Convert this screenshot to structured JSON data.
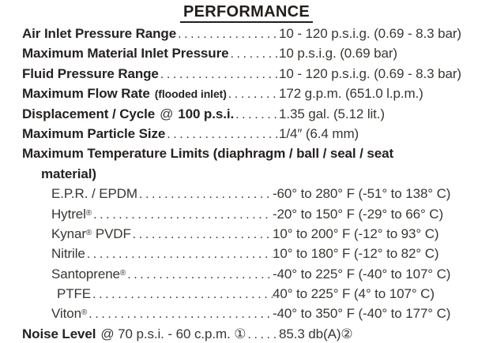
{
  "colors": {
    "ink_bold": "#262220",
    "ink_regular": "#3a3631",
    "background": "#ffffff"
  },
  "title": "PERFORMANCE",
  "specs": [
    {
      "label": "Air Inlet Pressure Range",
      "value": "10 - 120 p.s.i.g. (0.69 - 8.3 bar)"
    },
    {
      "label": "Maximum Material Inlet Pressure",
      "value": "10 p.s.i.g. (0.69 bar)"
    },
    {
      "label": "Fluid Pressure Range",
      "value": "10 - 120 p.s.i.g. (0.69 - 8.3 bar)"
    },
    {
      "label": "Maximum Flow Rate",
      "note": "(flooded inlet)",
      "value": "172 g.p.m. (651.0 l.p.m.)"
    },
    {
      "label": "Displacement / Cycle",
      "connector": "@",
      "label_bold2": "100 p.s.i.",
      "value": "1.35 gal. (5.12 lit.)"
    },
    {
      "label": "Maximum Particle Size",
      "value": "1/4″ (6.4 mm)"
    }
  ],
  "temperature_limits": {
    "heading_line1": "Maximum Temperature Limits (diaphragm / ball / seal / seat",
    "heading_line2": "material)",
    "materials": [
      {
        "name": "E.P.R. / EPDM",
        "value": "-60° to 280° F (-51° to 138° C)"
      },
      {
        "name": "Hytrel",
        "reg": "®",
        "value": "-20° to 150° F (-29° to 66° C)"
      },
      {
        "name": "Kynar",
        "reg": "®",
        "name_suffix": " PVDF",
        "value": "10° to 200° F (-12° to 93° C)"
      },
      {
        "name": "Nitrile",
        "value": "10° to 180° F (-12° to 82° C)"
      },
      {
        "name": "Santoprene",
        "reg": "®",
        "value": "-40° to 225° F (-40° to 107° C)"
      },
      {
        "name": "PTFE",
        "value": "40° to 225° F (4° to 107° C)"
      },
      {
        "name": "Viton",
        "reg": "®",
        "value": "-40° to 350° F (-40° to 177° C)"
      }
    ]
  },
  "noise": {
    "label": "Noise Level",
    "condition": "@ 70 p.s.i. - 60 c.p.m. ①",
    "value": "85.3 db(A)②"
  }
}
